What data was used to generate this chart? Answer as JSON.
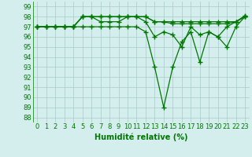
{
  "x": [
    0,
    1,
    2,
    3,
    4,
    5,
    6,
    7,
    8,
    9,
    10,
    11,
    12,
    13,
    14,
    15,
    16,
    17,
    18,
    19,
    20,
    21,
    22,
    23
  ],
  "series": [
    [
      97,
      97,
      97,
      97,
      97,
      97,
      97,
      97,
      97,
      97,
      97,
      97,
      96.5,
      93,
      89,
      93,
      95.5,
      96.5,
      93.5,
      96.5,
      96,
      95,
      97,
      98
    ],
    [
      97,
      97,
      97,
      97,
      97,
      98,
      98,
      97.5,
      97.5,
      97.5,
      98,
      98,
      97.5,
      96,
      96.5,
      96.2,
      95,
      97,
      96.2,
      96.5,
      96,
      97,
      97.5,
      98
    ],
    [
      97,
      97,
      97,
      97,
      97,
      98,
      98,
      98,
      98,
      98,
      98,
      98,
      98,
      97.5,
      97.5,
      97.3,
      97.3,
      97.3,
      97.3,
      97.3,
      97.3,
      97.3,
      97.5,
      98
    ],
    [
      97,
      97,
      97,
      97,
      97,
      98,
      98,
      98,
      98,
      98,
      98,
      98,
      98,
      97.5,
      97.5,
      97.5,
      97.5,
      97.5,
      97.5,
      97.5,
      97.5,
      97.5,
      97.5,
      98.1
    ]
  ],
  "line_color": "#007700",
  "marker": "+",
  "markersize": 4,
  "linewidth": 0.9,
  "markeredgewidth": 1.0,
  "xlabel": "Humidité relative (%)",
  "xlabel_fontsize": 7,
  "ylabel_ticks": [
    88,
    89,
    90,
    91,
    92,
    93,
    94,
    95,
    96,
    97,
    98,
    99
  ],
  "ylim": [
    87.5,
    99.5
  ],
  "xlim": [
    -0.5,
    23.5
  ],
  "bg_color": "#d4eeee",
  "grid_color": "#aacaca",
  "tick_fontsize": 6,
  "xlabel_color": "#007700"
}
